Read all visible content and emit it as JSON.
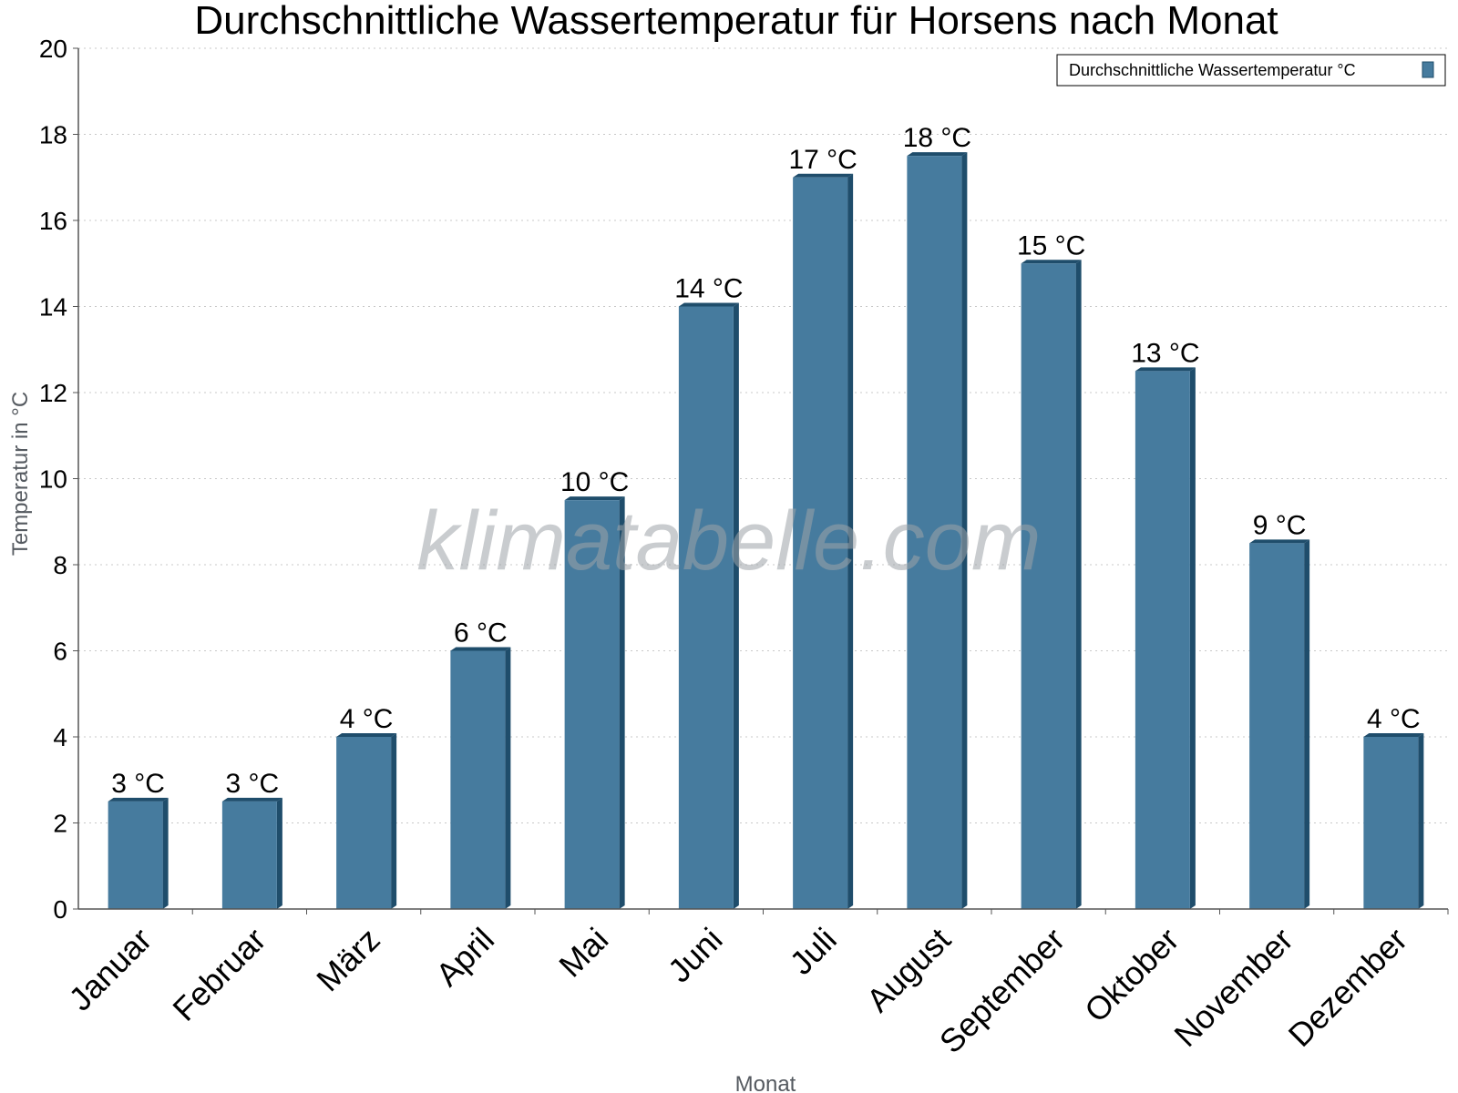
{
  "chart_data": {
    "type": "bar",
    "title": "Durchschnittliche Wassertemperatur für Horsens nach Monat",
    "xlabel": "Monat",
    "ylabel": "Temperatur in °C",
    "categories": [
      "Januar",
      "Februar",
      "März",
      "April",
      "Mai",
      "Juni",
      "Juli",
      "August",
      "September",
      "Oktober",
      "November",
      "Dezember"
    ],
    "series": [
      {
        "name": "Durchschnittliche Wassertemperatur °C",
        "values": [
          2.5,
          2.5,
          4,
          6,
          9.5,
          14,
          17,
          17.5,
          15,
          12.5,
          8.5,
          4
        ],
        "data_labels": [
          "3 °C",
          "3 °C",
          "4 °C",
          "6 °C",
          "10 °C",
          "14 °C",
          "17 °C",
          "18 °C",
          "15 °C",
          "13 °C",
          "9 °C",
          "4 °C"
        ]
      }
    ],
    "ylim": [
      0,
      20
    ],
    "yticks": [
      0,
      2,
      4,
      6,
      8,
      10,
      12,
      14,
      16,
      18,
      20
    ],
    "grid": true,
    "legend_position": "top-right",
    "colors": {
      "bar": "#467b9e",
      "bar_shade": "#1f4d6b"
    }
  },
  "watermark": "klimatabelle.com"
}
